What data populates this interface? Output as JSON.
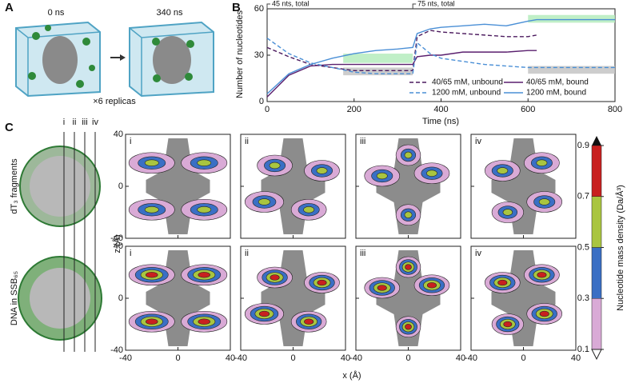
{
  "panel_a": {
    "label": "A",
    "start": "0 ns",
    "end": "340 ns",
    "replicas": "×6 replicas"
  },
  "chart_data": {
    "type": "line",
    "label": "B",
    "xlabel": "Time (ns)",
    "ylabel": "Number of nucleotides",
    "x": [
      0,
      50,
      100,
      150,
      200,
      250,
      300,
      335,
      345,
      375,
      400,
      450,
      500,
      550,
      600,
      620,
      650,
      700,
      750,
      800
    ],
    "xlim": [
      0,
      800
    ],
    "ylim": [
      0,
      60
    ],
    "xticks": [
      0,
      200,
      400,
      600,
      800
    ],
    "yticks": [
      0,
      30,
      60
    ],
    "series": [
      {
        "name": "40/65 mM, unbound",
        "color": "#4b1a5e",
        "style": "dashed",
        "values": [
          35,
          29,
          24,
          22,
          20,
          20,
          20,
          20,
          42,
          46,
          45,
          44,
          43,
          42,
          42,
          43,
          null,
          null,
          null,
          null
        ]
      },
      {
        "name": "40/65 mM, bound",
        "color": "#5a1f6e",
        "style": "solid",
        "values": [
          3,
          17,
          23,
          24,
          24,
          24,
          24,
          24,
          29,
          30,
          30,
          32,
          32,
          32,
          33,
          33,
          null,
          null,
          null,
          null
        ]
      },
      {
        "name": "1200 mM, unbound",
        "color": "#4a8fd6",
        "style": "dashed",
        "values": [
          41,
          31,
          25,
          22,
          19,
          18,
          18,
          18,
          38,
          31,
          28,
          26,
          24,
          23,
          22,
          22,
          22,
          22,
          22,
          22
        ]
      },
      {
        "name": "1200 mM, bound",
        "color": "#4a8fd6",
        "style": "solid",
        "values": [
          5,
          18,
          24,
          28,
          31,
          33,
          34,
          35,
          44,
          47,
          48,
          49,
          50,
          49,
          52,
          53,
          53,
          53,
          53,
          53
        ]
      }
    ],
    "bands": [
      {
        "x": [
          175,
          335
        ],
        "y": [
          25,
          31
        ],
        "color": "#b5ecbd"
      },
      {
        "x": [
          175,
          335
        ],
        "y": [
          17,
          22
        ],
        "color": "#c4c4c4"
      },
      {
        "x": [
          600,
          800
        ],
        "y": [
          51,
          56
        ],
        "color": "#b5ecbd"
      },
      {
        "x": [
          600,
          800
        ],
        "y": [
          18,
          23
        ],
        "color": "#c4c4c4"
      }
    ],
    "annotations": [
      {
        "text": "45 nts, total",
        "x": 0
      },
      {
        "text": "75 nts, total",
        "x": 335
      }
    ]
  },
  "panel_c": {
    "label": "C",
    "columns": [
      "i",
      "ii",
      "iii",
      "iv"
    ],
    "rows": [
      "dT₃ fragments",
      "DNA in SSB₆₅"
    ],
    "xlabel": "x (Å)",
    "ylabel": "z (Å)",
    "xlim": [
      -40,
      40
    ],
    "ylim": [
      -40,
      40
    ],
    "xticks": [
      -40,
      0,
      40
    ],
    "yticks": [
      -40,
      0,
      40
    ],
    "colorbar": {
      "label": "Nucleotide mass density (Da/Å³)",
      "lim": [
        0.1,
        0.9
      ],
      "ticks": [
        0.1,
        0.3,
        0.5,
        0.7,
        0.9
      ],
      "colors": [
        "#d9aad6",
        "#3a6fc4",
        "#a9c540",
        "#c8201f"
      ]
    }
  }
}
